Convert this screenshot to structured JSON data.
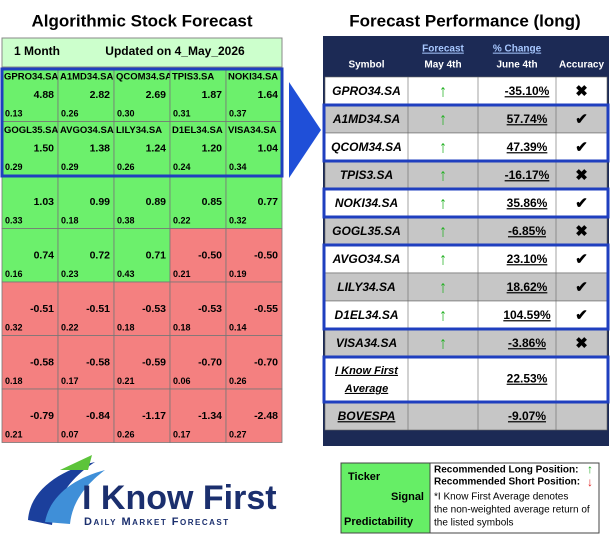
{
  "left": {
    "title": "Algorithmic Stock Forecast",
    "horizon": "1 Month",
    "updated": "Updated on 4_May_2026",
    "rows": [
      [
        {
          "ticker": "GPRO34.SA",
          "signal": "4.88",
          "predictability": "0.13"
        },
        {
          "ticker": "A1MD34.SA",
          "signal": "2.82",
          "predictability": "0.26"
        },
        {
          "ticker": "QCOM34.SA",
          "signal": "2.69",
          "predictability": "0.30"
        },
        {
          "ticker": "TPIS3.SA",
          "signal": "1.87",
          "predictability": "0.31"
        },
        {
          "ticker": "NOKI34.SA",
          "signal": "1.64",
          "predictability": "0.37"
        }
      ],
      [
        {
          "ticker": "GOGL35.SA",
          "signal": "1.50",
          "predictability": "0.29"
        },
        {
          "ticker": "AVGO34.SA",
          "signal": "1.38",
          "predictability": "0.29"
        },
        {
          "ticker": "LILY34.SA",
          "signal": "1.24",
          "predictability": "0.26"
        },
        {
          "ticker": "D1EL34.SA",
          "signal": "1.20",
          "predictability": "0.24"
        },
        {
          "ticker": "VISA34.SA",
          "signal": "1.04",
          "predictability": "0.34"
        }
      ],
      [
        {
          "signal": "1.03",
          "predictability": "0.33"
        },
        {
          "signal": "0.99",
          "predictability": "0.18"
        },
        {
          "signal": "0.89",
          "predictability": "0.38"
        },
        {
          "signal": "0.85",
          "predictability": "0.22"
        },
        {
          "signal": "0.77",
          "predictability": "0.32"
        }
      ],
      [
        {
          "signal": "0.74",
          "predictability": "0.16"
        },
        {
          "signal": "0.72",
          "predictability": "0.23"
        },
        {
          "signal": "0.71",
          "predictability": "0.43"
        },
        {
          "signal": "-0.50",
          "predictability": "0.21"
        },
        {
          "signal": "-0.50",
          "predictability": "0.19"
        }
      ],
      [
        {
          "signal": "-0.51",
          "predictability": "0.32"
        },
        {
          "signal": "-0.51",
          "predictability": "0.22"
        },
        {
          "signal": "-0.53",
          "predictability": "0.18"
        },
        {
          "signal": "-0.53",
          "predictability": "0.18"
        },
        {
          "signal": "-0.55",
          "predictability": "0.14"
        }
      ],
      [
        {
          "signal": "-0.58",
          "predictability": "0.18"
        },
        {
          "signal": "-0.58",
          "predictability": "0.17"
        },
        {
          "signal": "-0.59",
          "predictability": "0.21"
        },
        {
          "signal": "-0.70",
          "predictability": "0.06"
        },
        {
          "signal": "-0.70",
          "predictability": "0.26"
        }
      ],
      [
        {
          "signal": "-0.79",
          "predictability": "0.21"
        },
        {
          "signal": "-0.84",
          "predictability": "0.07"
        },
        {
          "signal": "-1.17",
          "predictability": "0.26"
        },
        {
          "signal": "-1.34",
          "predictability": "0.17"
        },
        {
          "signal": "-2.48",
          "predictability": "0.27"
        }
      ]
    ]
  },
  "right": {
    "title": "Forecast Performance (long)",
    "header": {
      "symbol": "Symbol",
      "forecast": "Forecast",
      "forecast_date": "May 4th",
      "change": "% Change",
      "change_date": "June 4th",
      "accuracy": "Accuracy"
    },
    "rows": [
      {
        "symbol": "GPRO34.SA",
        "forecast": "↑",
        "change": "-35.10%",
        "accuracy": "✖"
      },
      {
        "symbol": "A1MD34.SA",
        "forecast": "↑",
        "change": "57.74%",
        "accuracy": "✔"
      },
      {
        "symbol": "QCOM34.SA",
        "forecast": "↑",
        "change": "47.39%",
        "accuracy": "✔"
      },
      {
        "symbol": "TPIS3.SA",
        "forecast": "↑",
        "change": "-16.17%",
        "accuracy": "✖"
      },
      {
        "symbol": "NOKI34.SA",
        "forecast": "↑",
        "change": "35.86%",
        "accuracy": "✔"
      },
      {
        "symbol": "GOGL35.SA",
        "forecast": "↑",
        "change": "-6.85%",
        "accuracy": "✖"
      },
      {
        "symbol": "AVGO34.SA",
        "forecast": "↑",
        "change": "23.10%",
        "accuracy": "✔"
      },
      {
        "symbol": "LILY34.SA",
        "forecast": "↑",
        "change": "18.62%",
        "accuracy": "✔"
      },
      {
        "symbol": "D1EL34.SA",
        "forecast": "↑",
        "change": "104.59%",
        "accuracy": "✔"
      },
      {
        "symbol": "VISA34.SA",
        "forecast": "↑",
        "change": "-3.86%",
        "accuracy": "✖"
      }
    ],
    "average": {
      "label_lines": [
        "I Know First",
        "Average"
      ],
      "change": "22.53%"
    },
    "benchmark": {
      "symbol": "BOVESPA",
      "change": "-9.07%"
    }
  },
  "legend": {
    "ticker": "Ticker",
    "signal": "Signal",
    "predictability": "Predictability",
    "long": "Recommended Long Position:",
    "long_icon": "↑",
    "short": "Recommended Short Position:",
    "short_icon": "↓",
    "note_lines": [
      "*I Know First Average denotes",
      "the non-weighted average return of",
      "the listed symbols"
    ]
  },
  "logo": {
    "name": "I Know First",
    "tagline": "Daily Market Forecast"
  }
}
